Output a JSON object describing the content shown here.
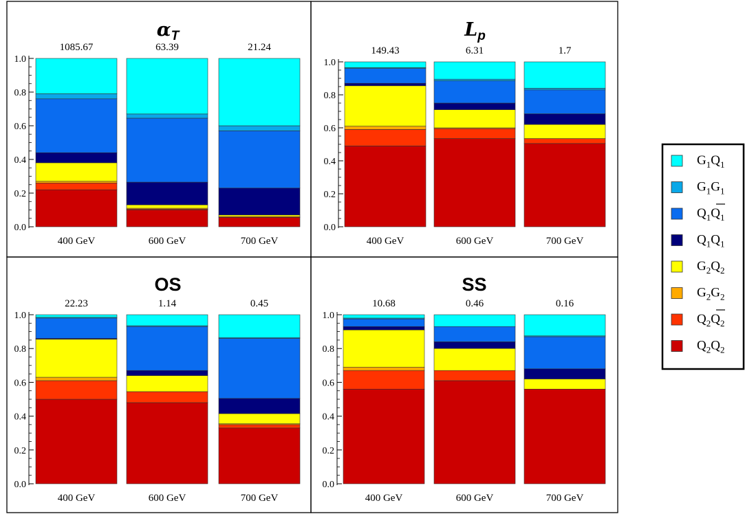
{
  "chart_data": {
    "type": "bar",
    "stacked": true,
    "ylim": [
      0,
      1.0
    ],
    "yticks": [
      "0.0",
      "0.2",
      "0.4",
      "0.6",
      "0.8",
      "1.0"
    ],
    "legend": {
      "placement": "right",
      "entries": [
        {
          "id": "G1Q1",
          "label": "G1Q1",
          "color": "#00ffff"
        },
        {
          "id": "G1G1",
          "label": "G1G1",
          "color": "#0aa8e8"
        },
        {
          "id": "Q1Q1bar",
          "label": "Q1Q̄1",
          "color": "#0a6cf0"
        },
        {
          "id": "Q1Q1",
          "label": "Q1Q1",
          "color": "#00007a"
        },
        {
          "id": "G2Q2",
          "label": "G2Q2",
          "color": "#ffff00"
        },
        {
          "id": "G2G2",
          "label": "G2G2",
          "color": "#ffaa00"
        },
        {
          "id": "Q2Q2bar",
          "label": "Q2Q̄2",
          "color": "#ff3300"
        },
        {
          "id": "Q2Q2",
          "label": "Q2Q2",
          "color": "#cc0000"
        }
      ]
    },
    "panels": [
      {
        "title_main": "α",
        "title_sub": "T",
        "categories": [
          "400 GeV",
          "600 GeV",
          "700 GeV"
        ],
        "totals": [
          "1085.67",
          "63.39",
          "21.24"
        ],
        "series": {
          "Q2Q2": [
            0.22,
            0.1,
            0.055
          ],
          "Q2Q2bar": [
            0.04,
            0.005,
            0.005
          ],
          "G2G2": [
            0.01,
            0.005,
            0.0
          ],
          "G2Q2": [
            0.11,
            0.02,
            0.01
          ],
          "Q1Q1": [
            0.06,
            0.135,
            0.16
          ],
          "Q1Q1bar": [
            0.32,
            0.38,
            0.34
          ],
          "G1G1": [
            0.03,
            0.025,
            0.03
          ],
          "G1Q1": [
            0.21,
            0.33,
            0.4
          ]
        }
      },
      {
        "title_main": "L",
        "title_sub": "p",
        "categories": [
          "400 GeV",
          "600 GeV",
          "700 GeV"
        ],
        "totals": [
          "149.43",
          "6.31",
          "1.7"
        ],
        "series": {
          "Q2Q2": [
            0.49,
            0.535,
            0.505
          ],
          "Q2Q2bar": [
            0.1,
            0.06,
            0.03
          ],
          "G2G2": [
            0.02,
            0.005,
            0.0
          ],
          "G2Q2": [
            0.245,
            0.11,
            0.085
          ],
          "Q1Q1": [
            0.015,
            0.04,
            0.065
          ],
          "Q1Q1bar": [
            0.09,
            0.135,
            0.145
          ],
          "G1G1": [
            0.005,
            0.01,
            0.01
          ],
          "G1Q1": [
            0.035,
            0.105,
            0.16
          ]
        }
      },
      {
        "title_main": "OS",
        "title_sub": "",
        "categories": [
          "400 GeV",
          "600 GeV",
          "700 GeV"
        ],
        "totals": [
          "22.23",
          "1.14",
          "0.45"
        ],
        "series": {
          "Q2Q2": [
            0.5,
            0.48,
            0.33
          ],
          "Q2Q2bar": [
            0.11,
            0.065,
            0.02
          ],
          "G2G2": [
            0.02,
            0.0,
            0.005
          ],
          "G2Q2": [
            0.225,
            0.095,
            0.06
          ],
          "Q1Q1": [
            0.005,
            0.03,
            0.09
          ],
          "Q1Q1bar": [
            0.12,
            0.26,
            0.355
          ],
          "G1G1": [
            0.005,
            0.005,
            0.005
          ],
          "G1Q1": [
            0.015,
            0.065,
            0.135
          ]
        }
      },
      {
        "title_main": "SS",
        "title_sub": "",
        "categories": [
          "400 GeV",
          "600 GeV",
          "700 GeV"
        ],
        "totals": [
          "10.68",
          "0.46",
          "0.16"
        ],
        "series": {
          "Q2Q2": [
            0.56,
            0.61,
            0.56
          ],
          "Q2Q2bar": [
            0.11,
            0.06,
            0.0
          ],
          "G2G2": [
            0.02,
            0.0,
            0.0
          ],
          "G2Q2": [
            0.22,
            0.13,
            0.06
          ],
          "Q1Q1": [
            0.02,
            0.04,
            0.06
          ],
          "Q1Q1bar": [
            0.045,
            0.09,
            0.19
          ],
          "G1G1": [
            0.005,
            0.0,
            0.005
          ],
          "G1Q1": [
            0.02,
            0.07,
            0.125
          ]
        }
      }
    ]
  }
}
